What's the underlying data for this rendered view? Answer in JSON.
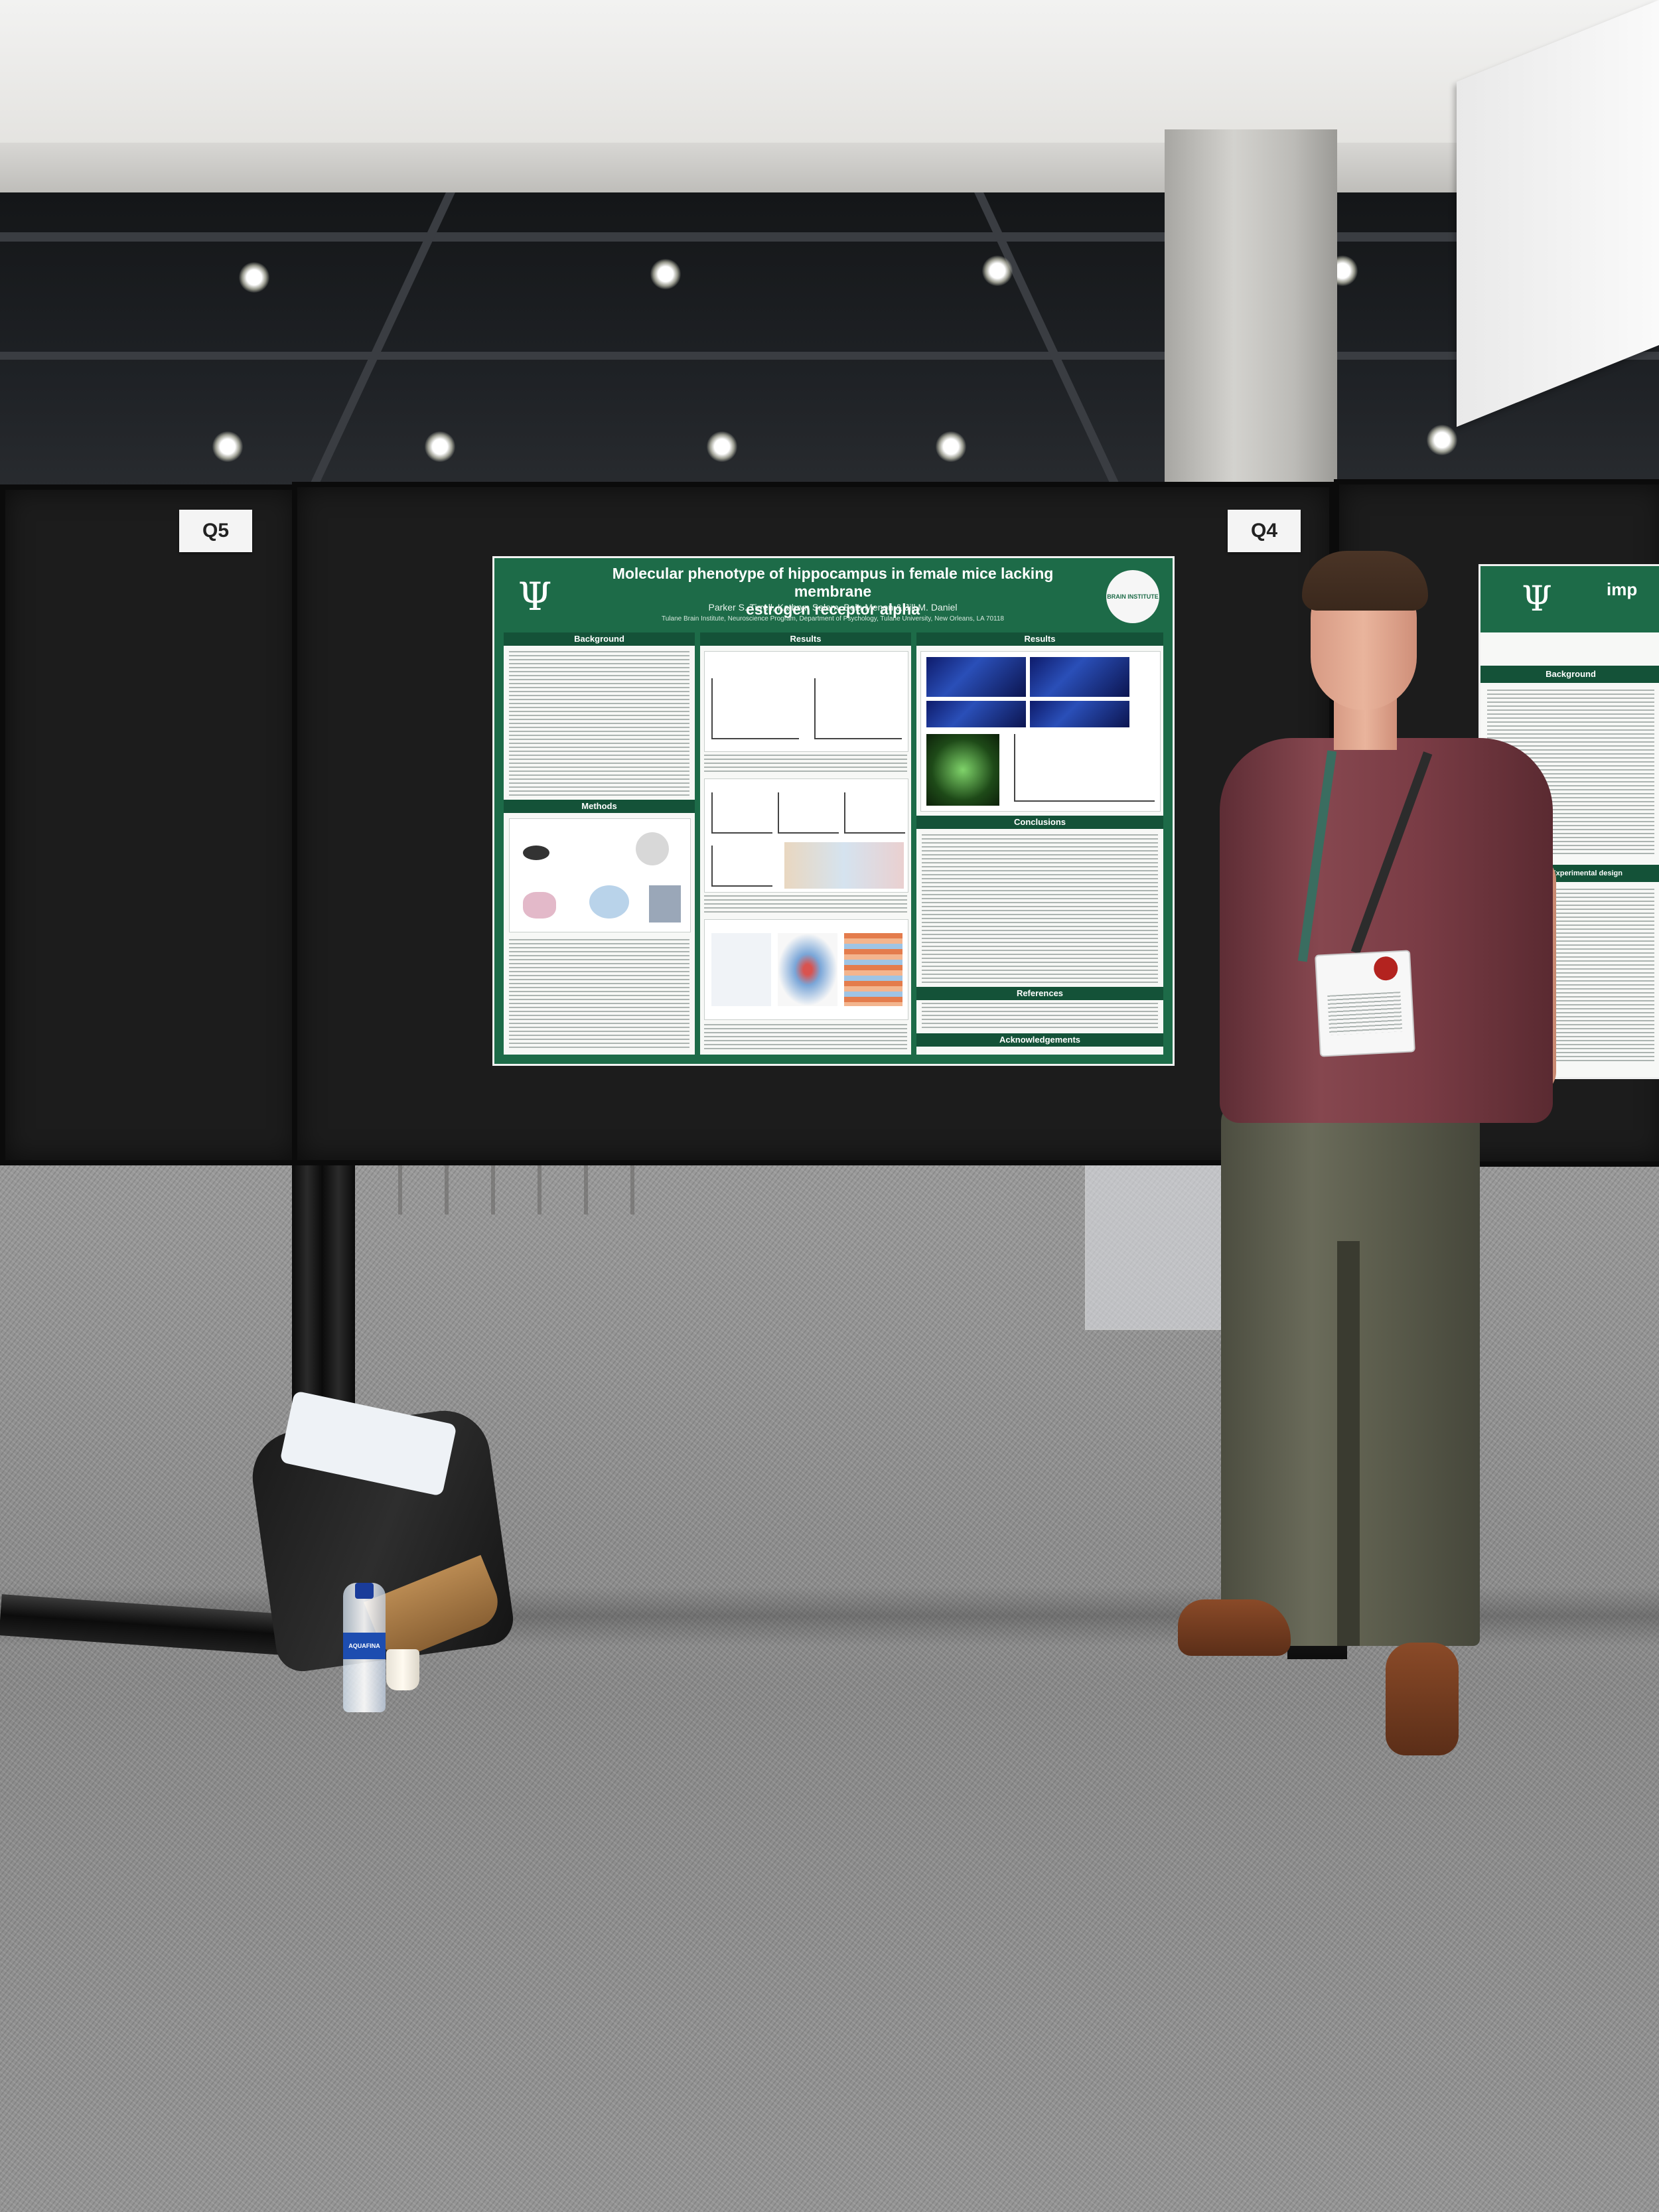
{
  "boards": {
    "left_tag": "Q5",
    "main_tag": "Q4"
  },
  "poster": {
    "title_line1": "Molecular phenotype of hippocampus in female mice lacking membrane",
    "title_line2": "estrogen receptor alpha",
    "authors": "Parker S. Tirrell, Kathryn Salem, Bela Menon & Jill M. Daniel",
    "affiliation": "Tulane Brain Institute, Neuroscience Program, Department of Psychology, Tulane University, New Orleans, LA 70118",
    "sections": {
      "background": "Background",
      "results_left": "Results",
      "results_right": "Results",
      "methods": "Methods",
      "conclusions": "Conclusions",
      "references": "References",
      "acknowledgements": "Acknowledgements"
    },
    "logo_right_text": "BRAIN INSTITUTE",
    "colors": {
      "primary_green": "#1d6b48",
      "dark_green": "#145238"
    }
  },
  "right_poster": {
    "header_text": "imp",
    "section_background": "Background",
    "section_methods": "ethods – Experimental design"
  },
  "water_bottle_label": "AQUAFINA"
}
